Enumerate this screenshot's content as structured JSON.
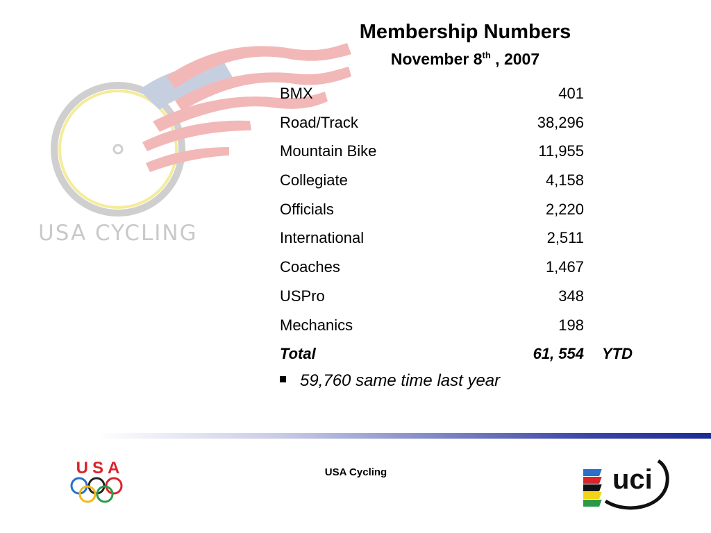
{
  "slide": {
    "title": "Membership Numbers",
    "subtitle_main": "November 8",
    "subtitle_sup": "th",
    "subtitle_rest": " , 2007"
  },
  "membership": {
    "rows": [
      {
        "label": "BMX",
        "value": "401"
      },
      {
        "label": "Road/Track",
        "value": "38,296"
      },
      {
        "label": "Mountain Bike",
        "value": "11,955"
      },
      {
        "label": "Collegiate",
        "value": "4,158"
      },
      {
        "label": "Officials",
        "value": "2,220"
      },
      {
        "label": "International",
        "value": "2,511"
      },
      {
        "label": "Coaches",
        "value": "1,467"
      },
      {
        "label": "USPro",
        "value": "348"
      },
      {
        "label": "Mechanics",
        "value": "198"
      }
    ],
    "total": {
      "label": "Total",
      "value": "61, 554",
      "suffix": "YTD"
    }
  },
  "bullet": {
    "text": "59,760 same time last year"
  },
  "footer": {
    "text": "USA Cycling"
  },
  "logos": {
    "background_logo_text": "USA CYCLING",
    "usa_olympic_text": "USA",
    "uci_text": "uci"
  },
  "colors": {
    "divider_dark": "#1d2a93",
    "flag_red": "#e06060",
    "flag_blue": "#8aa0c4",
    "wheel_yellow": "#f3e26a",
    "olympic_blue": "#2a6fc9",
    "olympic_yellow": "#f2b81b",
    "olympic_green": "#2b9a48",
    "olympic_red": "#d9242b"
  }
}
